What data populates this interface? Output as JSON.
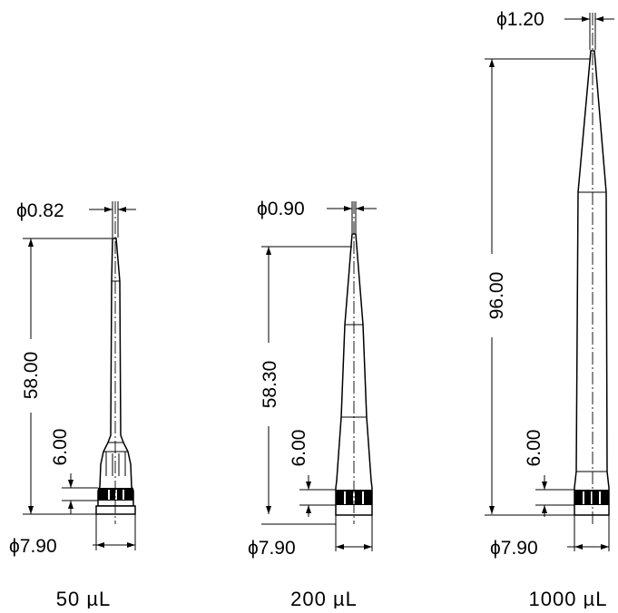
{
  "tips": [
    {
      "id": "tip-50",
      "caption": "50 µL",
      "tip_diameter": "ϕ0.82",
      "length": "58.00",
      "collar_height": "6.00",
      "base_diameter": "ϕ7.90"
    },
    {
      "id": "tip-200",
      "caption": "200 µL",
      "tip_diameter": "ϕ0.90",
      "length": "58.30",
      "collar_height": "6.00",
      "base_diameter": "ϕ7.90"
    },
    {
      "id": "tip-1000",
      "caption": "1000 µL",
      "tip_diameter": "ϕ1.20",
      "length": "96.00",
      "collar_height": "6.00",
      "base_diameter": "ϕ7.90"
    }
  ]
}
